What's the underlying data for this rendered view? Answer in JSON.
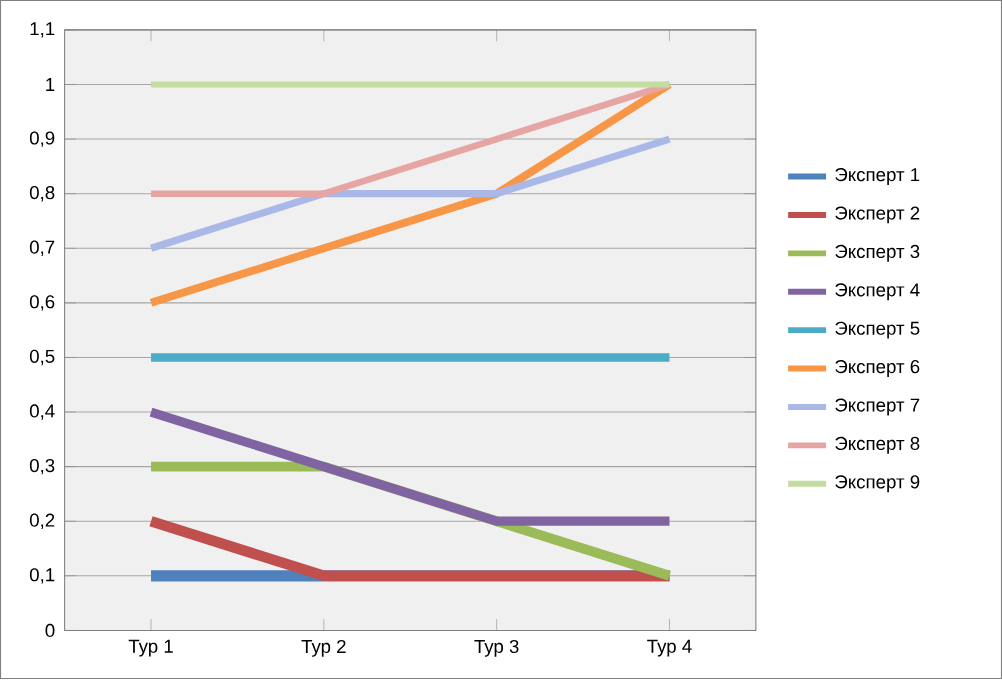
{
  "chart_data": {
    "type": "line",
    "categories": [
      "Тур 1",
      "Тур 2",
      "Тур 3",
      "Тур 4"
    ],
    "series": [
      {
        "name": "Эксперт 1",
        "color": "#4f81bd",
        "values": [
          0.1,
          0.1,
          0.1,
          0.1
        ]
      },
      {
        "name": "Эксперт 2",
        "color": "#c0504d",
        "values": [
          0.2,
          0.1,
          0.1,
          0.1
        ]
      },
      {
        "name": "Эксперт 3",
        "color": "#9bbb59",
        "values": [
          0.3,
          0.3,
          0.2,
          0.1
        ]
      },
      {
        "name": "Эксперт 4",
        "color": "#8064a2",
        "values": [
          0.4,
          0.3,
          0.2,
          0.2
        ]
      },
      {
        "name": "Эксперт 5",
        "color": "#4bacc6",
        "values": [
          0.5,
          0.5,
          0.5,
          0.5
        ]
      },
      {
        "name": "Эксперт 6",
        "color": "#f79646",
        "values": [
          0.6,
          0.7,
          0.8,
          1.0
        ]
      },
      {
        "name": "Эксперт 7",
        "color": "#a9b8e6",
        "values": [
          0.7,
          0.8,
          0.8,
          0.9
        ]
      },
      {
        "name": "Эксперт 8",
        "color": "#e6a4a2",
        "values": [
          0.8,
          0.8,
          0.9,
          1.0
        ]
      },
      {
        "name": "Эксперт 9",
        "color": "#c3dca0",
        "values": [
          1.0,
          1.0,
          1.0,
          1.0
        ]
      }
    ],
    "ylim": [
      0,
      1.1
    ],
    "yticks": [
      0,
      {
        "value": 0.1,
        "label": "0,1"
      },
      {
        "value": 0.2,
        "label": "0,2"
      },
      {
        "value": 0.3,
        "label": "0,3"
      },
      {
        "value": 0.4,
        "label": "0,4"
      },
      {
        "value": 0.5,
        "label": "0,5"
      },
      {
        "value": 0.6,
        "label": "0,6"
      },
      {
        "value": 0.7,
        "label": "0,7"
      },
      {
        "value": 0.8,
        "label": "0,8"
      },
      {
        "value": 0.9,
        "label": "0,9"
      },
      1,
      {
        "value": 1.1,
        "label": "1,1"
      }
    ],
    "grid": "y",
    "legend": "right",
    "marker": "none",
    "line_style": "solid"
  }
}
